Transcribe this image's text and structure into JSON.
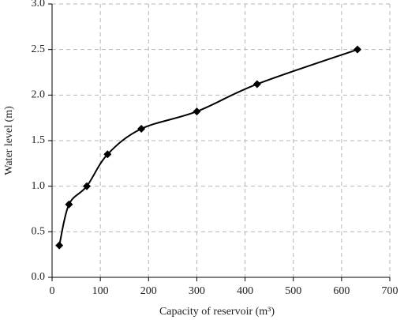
{
  "chart_data": {
    "type": "line",
    "smooth": true,
    "marker": "diamond",
    "x_label": "Capacity of reservoir (m³)",
    "y_label": "Water level (m)",
    "x": [
      15,
      35,
      72,
      115,
      185,
      300,
      425,
      633
    ],
    "series": [
      {
        "color": "#000000",
        "values": [
          0.35,
          0.8,
          1.0,
          1.35,
          1.63,
          1.82,
          2.12,
          2.5
        ]
      }
    ],
    "xlim": [
      0,
      700
    ],
    "xticks": [
      0,
      100,
      200,
      300,
      400,
      500,
      600,
      700
    ],
    "ylim": [
      0,
      3
    ],
    "yticks": [
      {
        "value": 0,
        "label": "0.0"
      },
      {
        "value": 0.5,
        "label": "0.5"
      },
      {
        "value": 1,
        "label": "1.0"
      },
      {
        "value": 1.5,
        "label": "1.5"
      },
      {
        "value": 2,
        "label": "2.0"
      },
      {
        "value": 2.5,
        "label": "2.5"
      },
      {
        "value": 3,
        "label": "3.0"
      }
    ],
    "grid": true
  }
}
